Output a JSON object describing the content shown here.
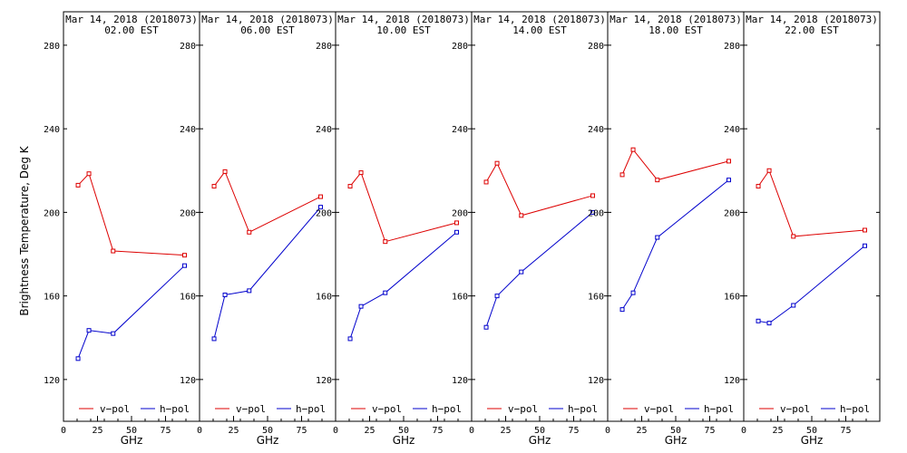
{
  "ylabel": "Brightness Temperature, Deg K",
  "xlabel": "GHz",
  "colors": {
    "v_pol": "#dd0000",
    "h_pol": "#0000cc"
  },
  "legend": {
    "v_label": "v−pol",
    "h_label": "h−pol"
  },
  "chart_data": [
    {
      "type": "line",
      "title": "Mar 14, 2018 (2018073)",
      "subtitle": "02.00 EST",
      "xlabel": "GHz",
      "ylabel": "Brightness Temperature, Deg K",
      "xlim": [
        0,
        100
      ],
      "ylim": [
        100,
        296
      ],
      "x_ticks": [
        0,
        25,
        50,
        75
      ],
      "y_ticks": [
        120,
        160,
        200,
        240,
        280
      ],
      "series": [
        {
          "name": "v−pol",
          "x": [
            10.7,
            18.7,
            36.5,
            89
          ],
          "values": [
            213,
            218.5,
            181.5,
            179.5
          ]
        },
        {
          "name": "h−pol",
          "x": [
            10.7,
            18.7,
            36.5,
            89
          ],
          "values": [
            130,
            143.5,
            142,
            174.5
          ]
        }
      ]
    },
    {
      "type": "line",
      "title": "Mar 14, 2018 (2018073)",
      "subtitle": "06.00 EST",
      "xlabel": "GHz",
      "ylabel": "Brightness Temperature, Deg K",
      "xlim": [
        0,
        100
      ],
      "ylim": [
        100,
        296
      ],
      "x_ticks": [
        0,
        25,
        50,
        75
      ],
      "y_ticks": [
        120,
        160,
        200,
        240,
        280
      ],
      "series": [
        {
          "name": "v−pol",
          "x": [
            10.7,
            18.7,
            36.5,
            89
          ],
          "values": [
            212.5,
            219.5,
            190.5,
            207.5
          ]
        },
        {
          "name": "h−pol",
          "x": [
            10.7,
            18.7,
            36.5,
            89
          ],
          "values": [
            139.5,
            160.5,
            162.5,
            202.5
          ]
        }
      ]
    },
    {
      "type": "line",
      "title": "Mar 14, 2018 (2018073)",
      "subtitle": "10.00 EST",
      "xlabel": "GHz",
      "ylabel": "Brightness Temperature, Deg K",
      "xlim": [
        0,
        100
      ],
      "ylim": [
        100,
        296
      ],
      "x_ticks": [
        0,
        25,
        50,
        75
      ],
      "y_ticks": [
        120,
        160,
        200,
        240,
        280
      ],
      "series": [
        {
          "name": "v−pol",
          "x": [
            10.7,
            18.7,
            36.5,
            89
          ],
          "values": [
            212.5,
            219,
            186,
            195
          ]
        },
        {
          "name": "h−pol",
          "x": [
            10.7,
            18.7,
            36.5,
            89
          ],
          "values": [
            139.5,
            155,
            161.5,
            190.5
          ]
        }
      ]
    },
    {
      "type": "line",
      "title": "Mar 14, 2018 (2018073)",
      "subtitle": "14.00 EST",
      "xlabel": "GHz",
      "ylabel": "Brightness Temperature, Deg K",
      "xlim": [
        0,
        100
      ],
      "ylim": [
        100,
        296
      ],
      "x_ticks": [
        0,
        25,
        50,
        75
      ],
      "y_ticks": [
        120,
        160,
        200,
        240,
        280
      ],
      "series": [
        {
          "name": "v−pol",
          "x": [
            10.7,
            18.7,
            36.5,
            89
          ],
          "values": [
            214.5,
            223.5,
            198.5,
            208
          ]
        },
        {
          "name": "h−pol",
          "x": [
            10.7,
            18.7,
            36.5,
            89
          ],
          "values": [
            145,
            160,
            171.5,
            200
          ]
        }
      ]
    },
    {
      "type": "line",
      "title": "Mar 14, 2018 (2018073)",
      "subtitle": "18.00 EST",
      "xlabel": "GHz",
      "ylabel": "Brightness Temperature, Deg K",
      "xlim": [
        0,
        100
      ],
      "ylim": [
        100,
        296
      ],
      "x_ticks": [
        0,
        25,
        50,
        75
      ],
      "y_ticks": [
        120,
        160,
        200,
        240,
        280
      ],
      "series": [
        {
          "name": "v−pol",
          "x": [
            10.7,
            18.7,
            36.5,
            89
          ],
          "values": [
            218,
            230,
            215.5,
            224.5
          ]
        },
        {
          "name": "h−pol",
          "x": [
            10.7,
            18.7,
            36.5,
            89
          ],
          "values": [
            153.5,
            161.5,
            188,
            215.5
          ]
        }
      ]
    },
    {
      "type": "line",
      "title": "Mar 14, 2018 (2018073)",
      "subtitle": "22.00 EST",
      "xlabel": "GHz",
      "ylabel": "Brightness Temperature, Deg K",
      "xlim": [
        0,
        100
      ],
      "ylim": [
        100,
        296
      ],
      "x_ticks": [
        0,
        25,
        50,
        75
      ],
      "y_ticks": [
        120,
        160,
        200,
        240,
        280
      ],
      "series": [
        {
          "name": "v−pol",
          "x": [
            10.7,
            18.7,
            36.5,
            89
          ],
          "values": [
            212.5,
            220,
            188.5,
            191.5
          ]
        },
        {
          "name": "h−pol",
          "x": [
            10.7,
            18.7,
            36.5,
            89
          ],
          "values": [
            148,
            147,
            155.5,
            184
          ]
        }
      ]
    }
  ]
}
